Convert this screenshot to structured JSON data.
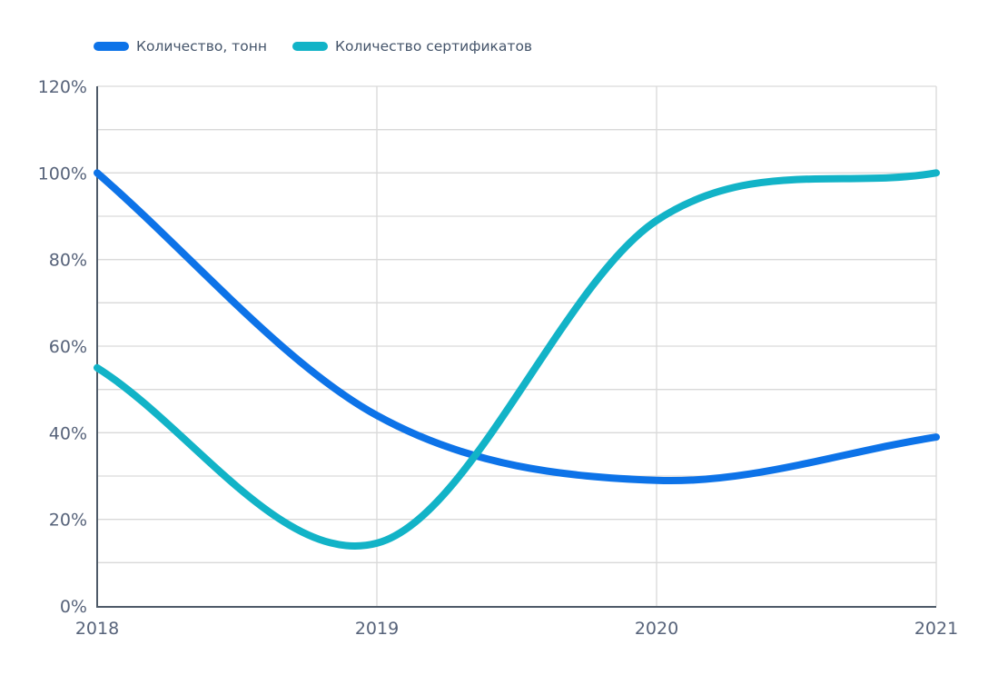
{
  "chart_data": {
    "type": "line",
    "title": "",
    "x": [
      "2018",
      "2019",
      "2020",
      "2021"
    ],
    "series": [
      {
        "name": "Количество, тонн",
        "color": "#0d73e8",
        "values": [
          100,
          44,
          29,
          39
        ]
      },
      {
        "name": "Количество сертификатов",
        "color": "#12b3c7",
        "values": [
          55,
          14.5,
          89,
          100
        ]
      }
    ],
    "y_unit": "%",
    "ylim": [
      0,
      120
    ],
    "y_grid_step": 10,
    "y_label_step": 20,
    "y_tick_labels": [
      "0%",
      "20%",
      "40%",
      "60%",
      "80%",
      "100%",
      "120%"
    ],
    "x_tick_labels": [
      "2018",
      "2019",
      "2020",
      "2021"
    ],
    "grid": true,
    "legend_position": "top-left",
    "line_width": 8,
    "colors": {
      "grid_line": "#d9d9d9",
      "axis_line": "#4e5a68",
      "tick_label": "#57637a",
      "legend_text": "#44546a",
      "background": "#ffffff"
    }
  }
}
